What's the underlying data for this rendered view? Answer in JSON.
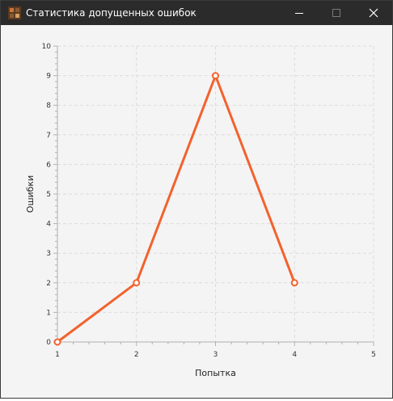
{
  "window": {
    "title": "Статистика допущенных ошибок",
    "controls": [
      "minimize",
      "maximize",
      "close"
    ],
    "icon": "app-icon"
  },
  "chart_data": {
    "type": "line",
    "title": "",
    "xlabel": "Попытка",
    "ylabel": "Ошибки",
    "xlim": [
      1,
      5
    ],
    "ylim": [
      0,
      10
    ],
    "x_ticks": [
      1,
      2,
      3,
      4,
      5
    ],
    "y_ticks": [
      0,
      1,
      2,
      3,
      4,
      5,
      6,
      7,
      8,
      9,
      10
    ],
    "grid": true,
    "legend": false,
    "series": [
      {
        "x": [
          1,
          2,
          3,
          4
        ],
        "values": [
          0,
          2,
          9,
          2
        ],
        "color": "#f3622d"
      }
    ]
  }
}
